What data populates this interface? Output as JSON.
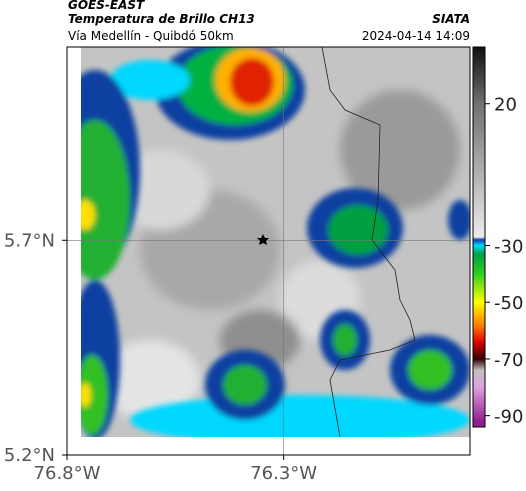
{
  "header": {
    "source": "GOES-EAST",
    "title": "Temperatura de Brillo CH13",
    "subtitle": "Vía Medellín - Quibdó 50km",
    "agency": "SIATA",
    "timestamp": "2024-04-14 14:09"
  },
  "map": {
    "xlim": [
      -76.8,
      -75.87
    ],
    "ylim": [
      5.2,
      6.15
    ],
    "xticks": [
      {
        "value": -76.8,
        "label": "76.8°W"
      },
      {
        "value": -76.3,
        "label": "76.3°W"
      }
    ],
    "yticks": [
      {
        "value": 5.2,
        "label": "5.2°N"
      },
      {
        "value": 5.7,
        "label": "5.7°N"
      }
    ],
    "grid": true
  },
  "colorbar": {
    "lim": [
      40,
      -94
    ],
    "ticks": [
      20,
      -30,
      -50,
      -70,
      -90
    ],
    "stops": [
      {
        "value": 40,
        "color": "#101010"
      },
      {
        "value": 20,
        "color": "#707070"
      },
      {
        "value": -27,
        "color": "#ececec"
      },
      {
        "value": -28,
        "color": "#1040a0"
      },
      {
        "value": -30,
        "color": "#00d8ff"
      },
      {
        "value": -33,
        "color": "#00a040"
      },
      {
        "value": -40,
        "color": "#30d020"
      },
      {
        "value": -50,
        "color": "#ffff00"
      },
      {
        "value": -58,
        "color": "#ff8000"
      },
      {
        "value": -64,
        "color": "#e00000"
      },
      {
        "value": -70,
        "color": "#300000"
      },
      {
        "value": -74,
        "color": "#c0c0c0"
      },
      {
        "value": -80,
        "color": "#e0a0e0"
      },
      {
        "value": -92,
        "color": "#902090"
      }
    ]
  }
}
